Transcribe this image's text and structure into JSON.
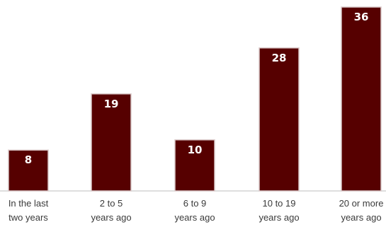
{
  "chart_data": {
    "type": "bar",
    "title": "",
    "xlabel": "",
    "ylabel": "",
    "categories": [
      [
        "In the last",
        "two years"
      ],
      [
        "2 to 5",
        "years ago"
      ],
      [
        "6 to 9",
        "years ago"
      ],
      [
        "10 to 19",
        "years ago"
      ],
      [
        "20 or more",
        "years ago"
      ]
    ],
    "values": [
      8,
      19,
      10,
      28,
      36
    ],
    "value_labels": [
      "8",
      "19",
      "10",
      "28",
      "36"
    ],
    "ylim": [
      0,
      36
    ],
    "grid": false,
    "legend": "none",
    "colors": {
      "bar": "#560000",
      "bar_border": "#d9c8c8",
      "value_text": "#ffffff",
      "category_text": "#3a3a3a"
    }
  }
}
